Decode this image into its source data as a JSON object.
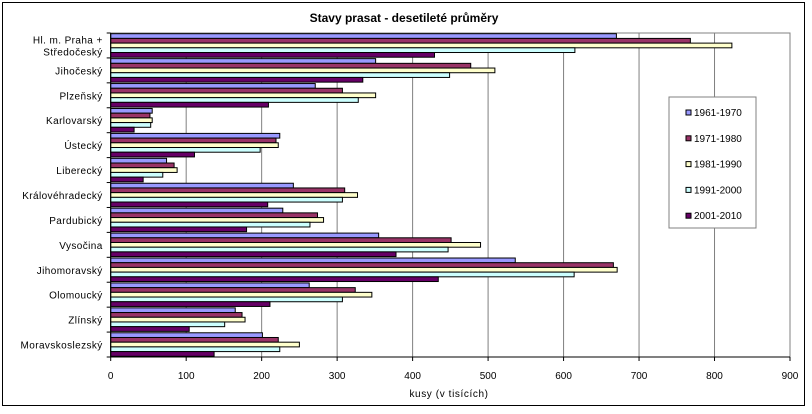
{
  "chart_data": {
    "type": "bar",
    "orientation": "horizontal",
    "title": "Stavy prasat - desetileté průměry",
    "xlabel": "kusy (v tisících)",
    "ylabel": "",
    "xlim": [
      0,
      900
    ],
    "xticks": [
      0,
      100,
      200,
      300,
      400,
      500,
      600,
      700,
      800,
      900
    ],
    "grid": true,
    "legend_position": "right",
    "categories": [
      "Hl. m. Praha + Středočeský",
      "Jihočeský",
      "Plzeňský",
      "Karlovarský",
      "Ústecký",
      "Liberecký",
      "Královéhradecký",
      "Pardubický",
      "Vysočina",
      "Jihomoravský",
      "Olomoucký",
      "Zlínský",
      "Moravskoslezský"
    ],
    "category_lines": [
      [
        "Hl. m. Praha +",
        "Středočeský"
      ],
      [
        "Jihočeský"
      ],
      [
        "Plzeňský"
      ],
      [
        "Karlovarský"
      ],
      [
        "Ústecký"
      ],
      [
        "Liberecký"
      ],
      [
        "Královéhradecký"
      ],
      [
        "Pardubický"
      ],
      [
        "Vysočina"
      ],
      [
        "Jihomoravský"
      ],
      [
        "Olomoucký"
      ],
      [
        "Zlínský"
      ],
      [
        "Moravskoslezský"
      ]
    ],
    "series": [
      {
        "name": "1961-1970",
        "color": "#9999FF",
        "values": [
          670,
          351,
          271,
          55,
          224,
          74,
          242,
          228,
          355,
          536,
          263,
          165,
          201
        ]
      },
      {
        "name": "1971-1980",
        "color": "#993366",
        "values": [
          768,
          477,
          307,
          52,
          219,
          84,
          310,
          274,
          451,
          666,
          324,
          174,
          222
        ]
      },
      {
        "name": "1981-1990",
        "color": "#FFFFCC",
        "values": [
          823,
          509,
          351,
          55,
          222,
          88,
          327,
          282,
          490,
          671,
          346,
          178,
          250
        ]
      },
      {
        "name": "1991-2000",
        "color": "#CCFFFF",
        "values": [
          615,
          449,
          328,
          53,
          198,
          69,
          307,
          264,
          447,
          614,
          307,
          151,
          224
        ]
      },
      {
        "name": "2001-2010",
        "color": "#660066",
        "values": [
          429,
          334,
          209,
          31,
          111,
          43,
          208,
          180,
          378,
          434,
          211,
          104,
          137
        ]
      }
    ]
  }
}
